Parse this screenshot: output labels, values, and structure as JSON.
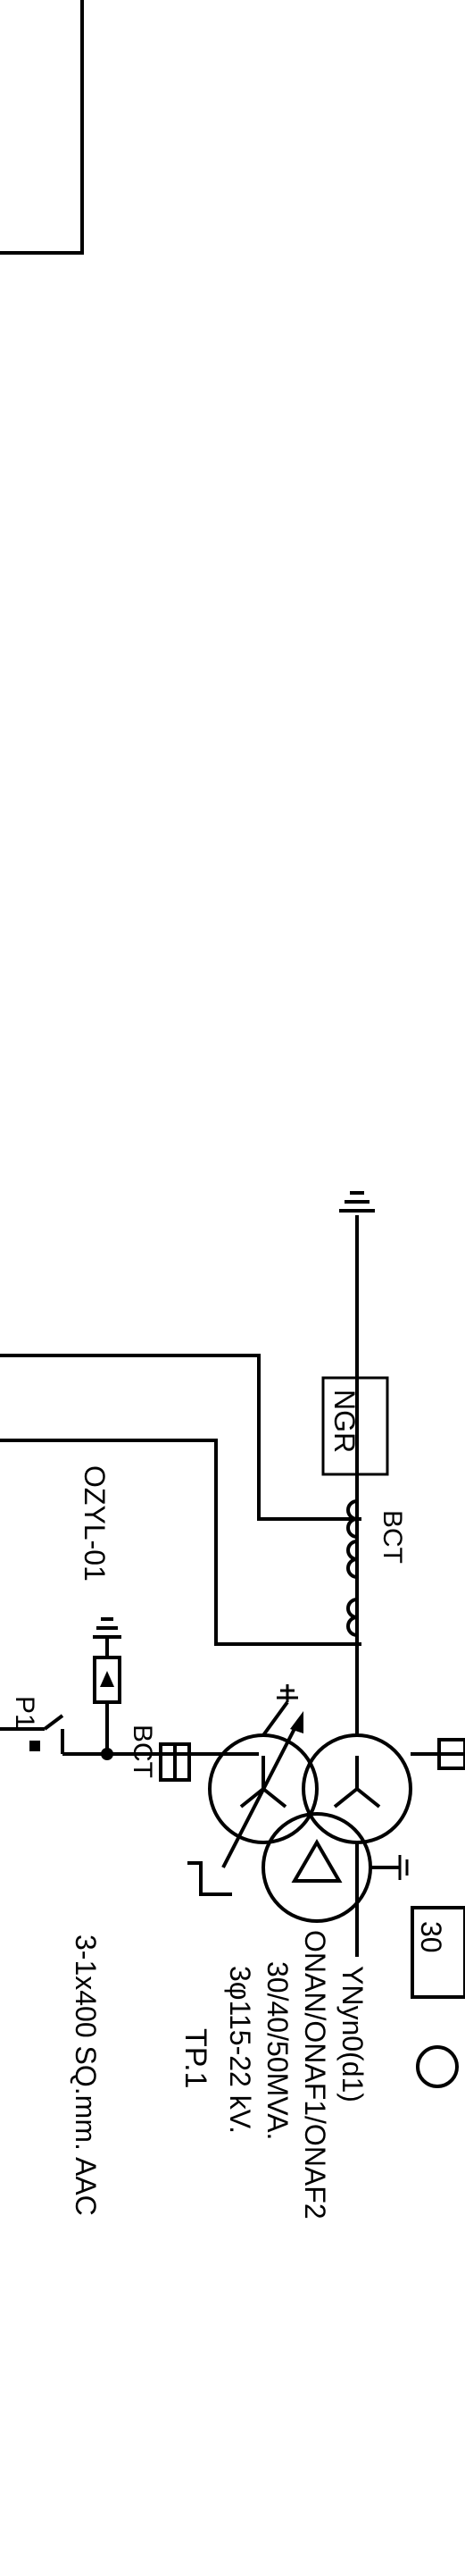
{
  "diagram": {
    "type": "single-line electrical diagram (rotated)",
    "labels": {
      "cable_spec": "3-1x400 SQ.mm. AAC",
      "arrester_tag": "OZYL-01",
      "switch_tag": "P1",
      "bct_upper": "BCT",
      "bct_lower": "BCT",
      "ngr": "NGR",
      "transformer_id": "TP.1",
      "transformer_voltage": "3φ115-22 kV.",
      "transformer_rating": "30/40/50MVA.",
      "transformer_cooling": "ONAN/ONAF1/ONAF2",
      "transformer_vector": "YNyn0(d1)",
      "bottom_partial": "30"
    },
    "colors": {
      "line": "#000000",
      "background": "#ffffff"
    }
  }
}
